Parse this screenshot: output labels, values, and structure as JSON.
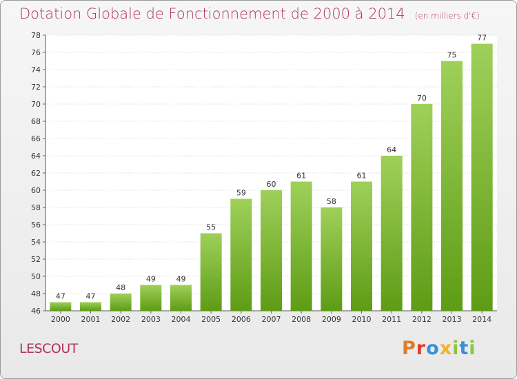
{
  "title": "Dotation Globale de Fonctionnement de 2000 à 2014",
  "subtitle": "(en milliers d'€)",
  "place": "LESCOUT",
  "logo": "Proxiti",
  "colors": {
    "title": "#b0345c",
    "bar_light": "#9fd05a",
    "bar_dark": "#5e9c15",
    "logo": [
      "#e07b2a",
      "#e33a2a",
      "#3a8fd6",
      "#f3b12a",
      "#8cc63f",
      "#3a8fd6",
      "#8cc63f"
    ]
  },
  "chart_data": {
    "type": "bar",
    "categories": [
      "2000",
      "2001",
      "2002",
      "2003",
      "2004",
      "2005",
      "2006",
      "2007",
      "2008",
      "2009",
      "2010",
      "2011",
      "2012",
      "2013",
      "2014"
    ],
    "values": [
      47,
      47,
      48,
      49,
      49,
      55,
      59,
      60,
      61,
      58,
      61,
      64,
      70,
      75,
      77
    ],
    "ylim": [
      46,
      78
    ],
    "yticks": [
      46,
      48,
      50,
      52,
      54,
      56,
      58,
      60,
      62,
      64,
      66,
      68,
      70,
      72,
      74,
      76,
      78
    ],
    "grid": true
  }
}
